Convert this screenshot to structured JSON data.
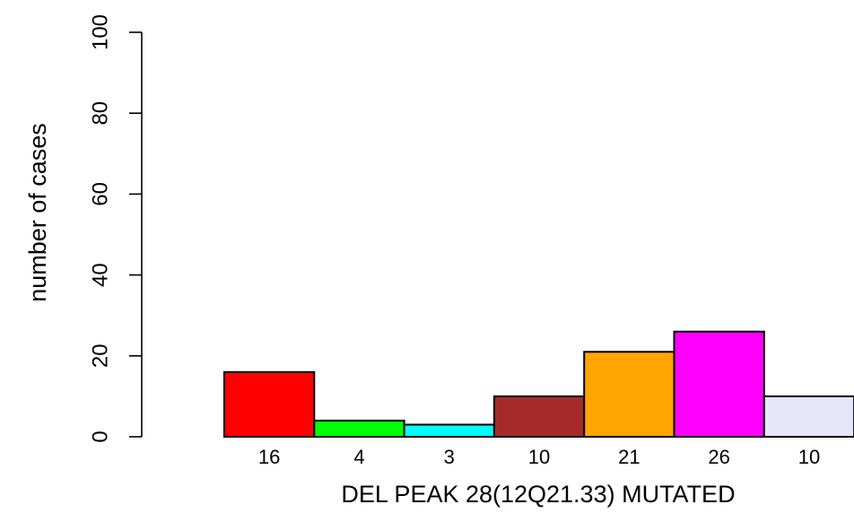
{
  "chart_data": {
    "type": "bar",
    "title": "",
    "xlabel": "DEL PEAK 28(12Q21.33) MUTATED",
    "ylabel": "number of cases",
    "ylim": [
      0,
      100
    ],
    "yticks": [
      "0",
      "20",
      "40",
      "60",
      "80",
      "100"
    ],
    "categories": [
      "16",
      "4",
      "3",
      "10",
      "21",
      "26",
      "10"
    ],
    "values": [
      16,
      4,
      3,
      10,
      21,
      26,
      10
    ],
    "colors": [
      "#FF0000",
      "#00FF00",
      "#00FFFF",
      "#A52A2A",
      "#FFA500",
      "#FF00FF",
      "#E6E6FA"
    ],
    "grid": false,
    "legend": "none"
  }
}
